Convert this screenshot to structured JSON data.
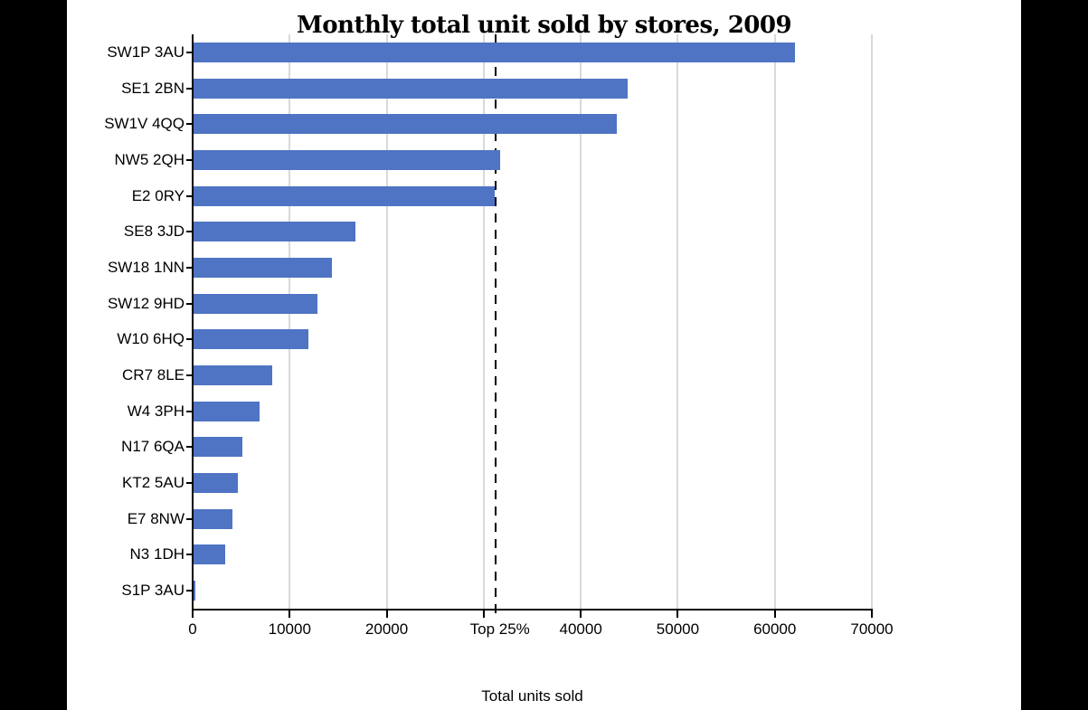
{
  "frame": {
    "background_color": "#000000",
    "panel_color": "#ffffff"
  },
  "chart_data": {
    "type": "bar",
    "orientation": "horizontal",
    "title": "Monthly total unit sold by stores, 2009",
    "xlabel": "Total units sold",
    "ylabel": "",
    "categories": [
      "SW1P 3AU",
      "SE1 2BN",
      "SW1V 4QQ",
      "NW5 2QH",
      "E2 0RY",
      "SE8 3JD",
      "SW18 1NN",
      "SW12 9HD",
      "W10 6HQ",
      "CR7 8LE",
      "W4 3PH",
      "N17 6QA",
      "KT2 5AU",
      "E7 8NW",
      "N3 1DH",
      "S1P 3AU"
    ],
    "values": [
      62000,
      44700,
      43600,
      31600,
      31000,
      16700,
      14300,
      12800,
      11800,
      8100,
      6800,
      5000,
      4600,
      4000,
      3300,
      150
    ],
    "xlim": [
      0,
      70000
    ],
    "x_ticks": [
      0,
      10000,
      20000,
      30000,
      40000,
      50000,
      60000,
      70000
    ],
    "x_tick_labels": [
      "0",
      "10000",
      "20000",
      "",
      "40000",
      "50000",
      "60000",
      "70000"
    ],
    "reference_line": {
      "label": "Top 25%",
      "value": 31200,
      "style": "dashed",
      "color": "#000000"
    },
    "grid": true,
    "legend": null,
    "bar_color": "#4f74c4",
    "gridline_color": "#d9d9d9",
    "axis_color": "#000000",
    "text_color": "#000000"
  }
}
